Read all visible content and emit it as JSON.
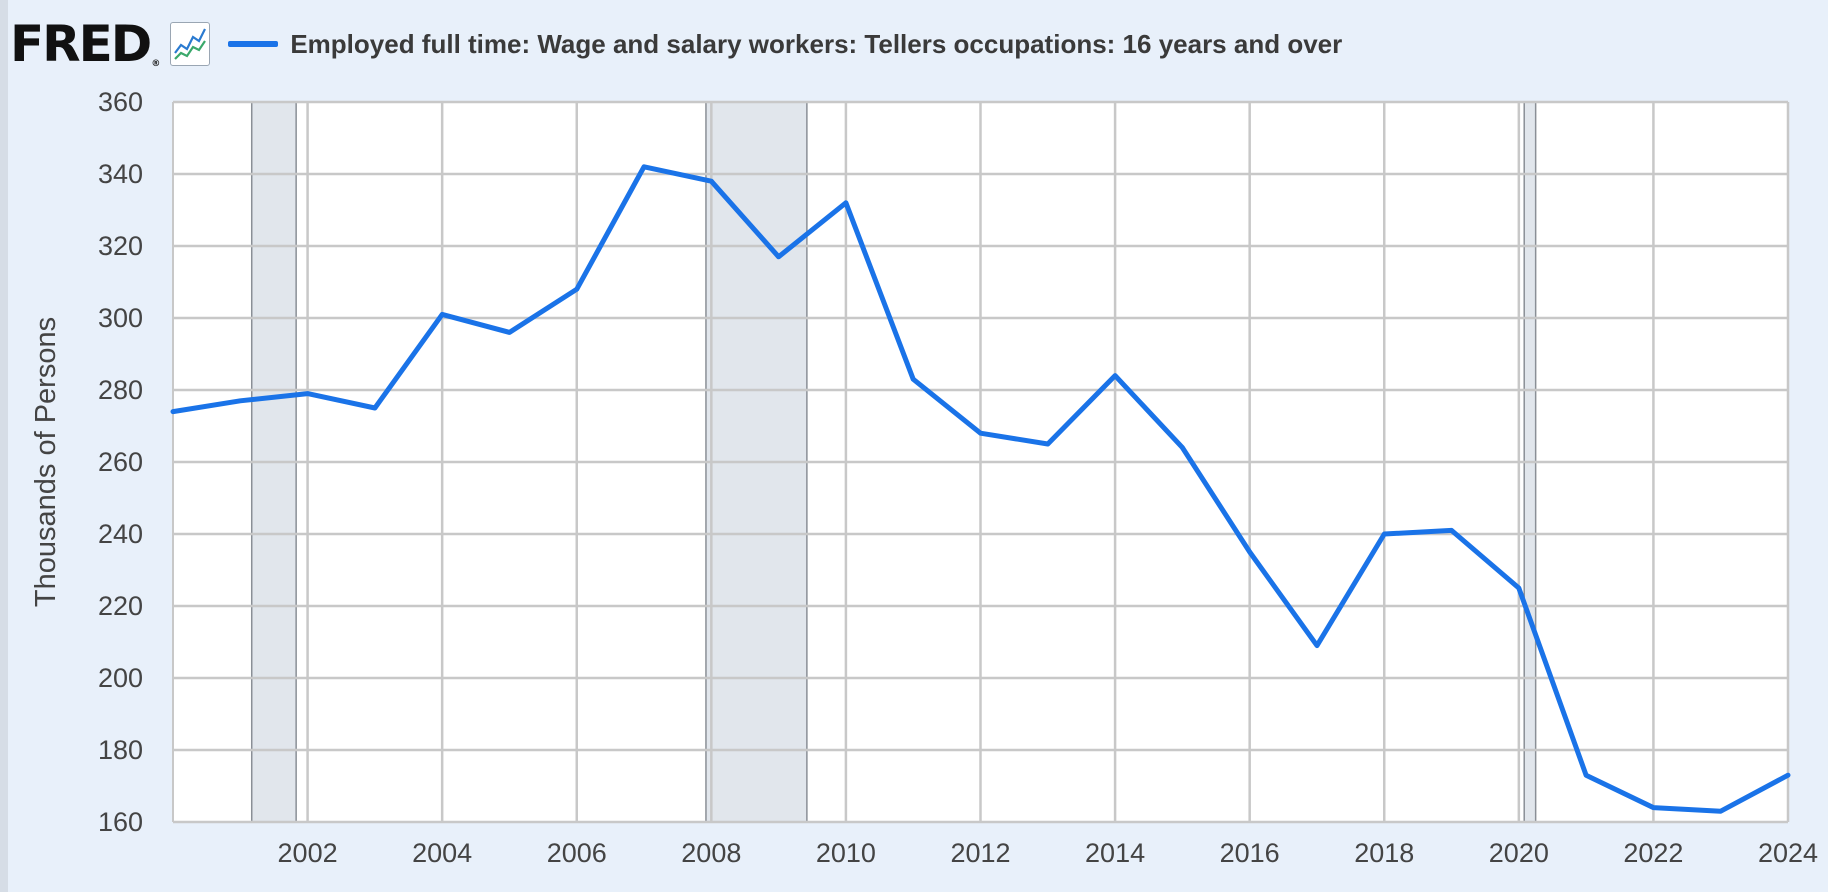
{
  "header": {
    "logo_text": "FRED",
    "logo_mark": "®",
    "graph_icon": "line-graph-icon",
    "series_label": "Employed full time: Wage and salary workers: Tellers occupations: 16 years and over",
    "series_color": "#1a73e8"
  },
  "colors": {
    "background": "#e8f0fa",
    "plot_background": "#ffffff",
    "grid": "#c8c8c8",
    "recession_shade": "#e1e6ec",
    "recession_border": "#8a8f96",
    "axis_text": "#444444"
  },
  "chart_data": {
    "type": "line",
    "title": "",
    "ylabel": "Thousands of Persons",
    "xlabel": "",
    "xlim": [
      2000,
      2024
    ],
    "ylim": [
      160,
      360
    ],
    "x_ticks": [
      "2002",
      "2004",
      "2006",
      "2008",
      "2010",
      "2012",
      "2014",
      "2016",
      "2018",
      "2020",
      "2022",
      "2024"
    ],
    "y_ticks": [
      "160",
      "180",
      "200",
      "220",
      "240",
      "260",
      "280",
      "300",
      "320",
      "340",
      "360"
    ],
    "grid": true,
    "recessions": [
      {
        "start": 2001.17,
        "end": 2001.83
      },
      {
        "start": 2007.92,
        "end": 2009.42
      },
      {
        "start": 2020.08,
        "end": 2020.25
      }
    ],
    "series": [
      {
        "name": "Employed full time: Wage and salary workers: Tellers occupations: 16 years and over",
        "color": "#1a73e8",
        "x": [
          2000,
          2001,
          2002,
          2003,
          2004,
          2005,
          2006,
          2007,
          2008,
          2009,
          2010,
          2011,
          2012,
          2013,
          2014,
          2015,
          2016,
          2017,
          2018,
          2019,
          2020,
          2021,
          2022,
          2023,
          2024
        ],
        "values": [
          274,
          277,
          279,
          275,
          301,
          296,
          308,
          342,
          338,
          317,
          332,
          283,
          268,
          265,
          284,
          264,
          235,
          209,
          240,
          241,
          225,
          173,
          164,
          163,
          173
        ]
      }
    ]
  }
}
